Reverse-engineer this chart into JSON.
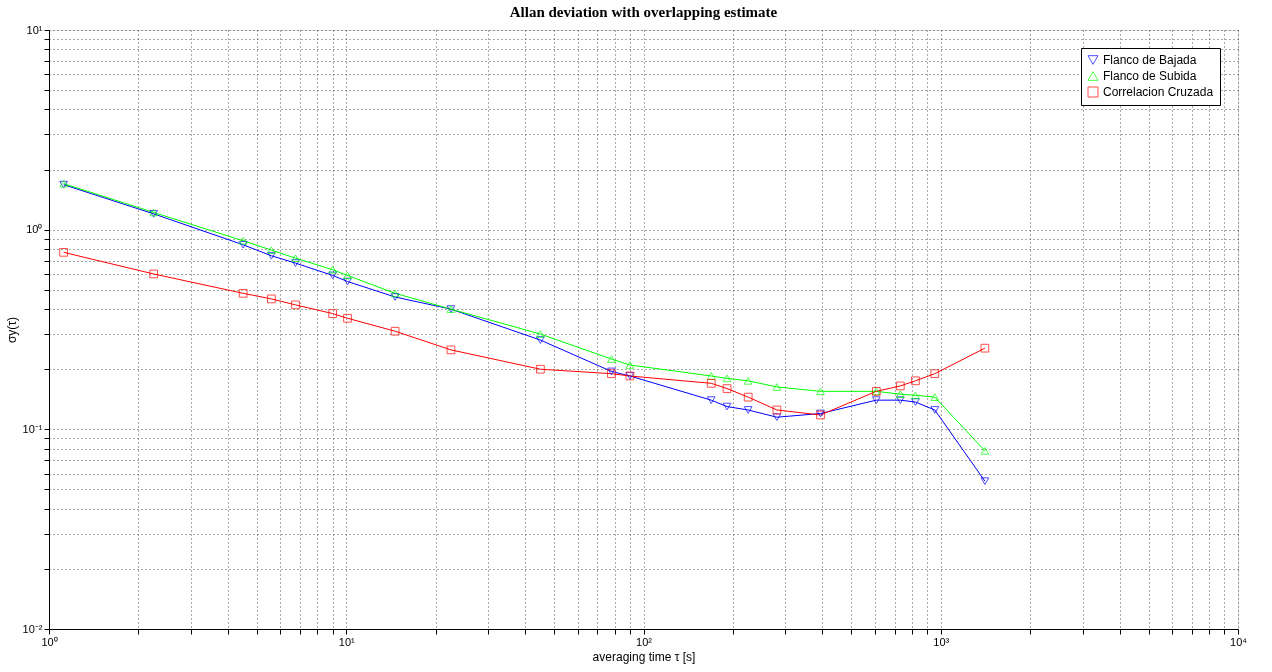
{
  "chart_data": {
    "type": "line",
    "title": "Allan deviation with overlapping estimate",
    "xlabel": "averaging time τ [s]",
    "ylabel": "σy(τ)",
    "x": [
      1.12,
      2.25,
      4.5,
      5.6,
      6.75,
      9,
      10.1,
      14.6,
      22.5,
      45,
      78,
      90,
      169,
      191,
      225,
      281,
      394,
      607,
      731,
      822,
      955,
      1408
    ],
    "series": [
      {
        "name": "Flanco de Bajada",
        "color": "#0000ff",
        "marker": "triangle-down",
        "values": [
          1.68,
          1.2,
          0.84,
          0.74,
          0.68,
          0.59,
          0.55,
          0.46,
          0.4,
          0.28,
          0.195,
          0.185,
          0.14,
          0.13,
          0.125,
          0.115,
          0.12,
          0.14,
          0.14,
          0.137,
          0.125,
          0.055
        ]
      },
      {
        "name": "Flanco de Subida",
        "color": "#00ff00",
        "marker": "triangle",
        "values": [
          1.7,
          1.22,
          0.88,
          0.79,
          0.72,
          0.63,
          0.59,
          0.48,
          0.4,
          0.3,
          0.225,
          0.21,
          0.185,
          0.18,
          0.175,
          0.163,
          0.155,
          0.155,
          0.15,
          0.148,
          0.145,
          0.078
        ]
      },
      {
        "name": "Correlacion Cruzada",
        "color": "#ff0000",
        "marker": "square",
        "values": [
          0.77,
          0.6,
          0.48,
          0.45,
          0.42,
          0.38,
          0.36,
          0.31,
          0.25,
          0.2,
          0.19,
          0.185,
          0.17,
          0.16,
          0.145,
          0.125,
          0.118,
          0.155,
          0.165,
          0.175,
          0.19,
          0.255
        ]
      }
    ],
    "log": "xy",
    "xlim": [
      1,
      10000
    ],
    "ylim": [
      0.01,
      10
    ],
    "xticks": [
      {
        "value": 1,
        "label": "10⁰"
      },
      {
        "value": 2,
        "label": null
      },
      {
        "value": 3,
        "label": null
      },
      {
        "value": 4,
        "label": null
      },
      {
        "value": 5,
        "label": null
      },
      {
        "value": 6,
        "label": null
      },
      {
        "value": 7,
        "label": null
      },
      {
        "value": 8,
        "label": null
      },
      {
        "value": 9,
        "label": null
      },
      {
        "value": 10,
        "label": "10¹"
      },
      {
        "value": 20,
        "label": null
      },
      {
        "value": 30,
        "label": null
      },
      {
        "value": 40,
        "label": null
      },
      {
        "value": 50,
        "label": null
      },
      {
        "value": 60,
        "label": null
      },
      {
        "value": 70,
        "label": null
      },
      {
        "value": 80,
        "label": null
      },
      {
        "value": 90,
        "label": null
      },
      {
        "value": 100,
        "label": "10²"
      },
      {
        "value": 200,
        "label": null
      },
      {
        "value": 300,
        "label": null
      },
      {
        "value": 400,
        "label": null
      },
      {
        "value": 500,
        "label": null
      },
      {
        "value": 600,
        "label": null
      },
      {
        "value": 700,
        "label": null
      },
      {
        "value": 800,
        "label": null
      },
      {
        "value": 900,
        "label": null
      },
      {
        "value": 1000,
        "label": "10³"
      },
      {
        "value": 2000,
        "label": null
      },
      {
        "value": 3000,
        "label": null
      },
      {
        "value": 4000,
        "label": null
      },
      {
        "value": 5000,
        "label": null
      },
      {
        "value": 6000,
        "label": null
      },
      {
        "value": 7000,
        "label": null
      },
      {
        "value": 8000,
        "label": null
      },
      {
        "value": 9000,
        "label": null
      },
      {
        "value": 10000,
        "label": "10⁴"
      }
    ],
    "yticks": [
      {
        "value": 0.01,
        "label": "10⁻²"
      },
      {
        "value": 0.02,
        "label": null
      },
      {
        "value": 0.03,
        "label": null
      },
      {
        "value": 0.04,
        "label": null
      },
      {
        "value": 0.05,
        "label": null
      },
      {
        "value": 0.06,
        "label": null
      },
      {
        "value": 0.07,
        "label": null
      },
      {
        "value": 0.08,
        "label": null
      },
      {
        "value": 0.09,
        "label": null
      },
      {
        "value": 0.1,
        "label": "10⁻¹"
      },
      {
        "value": 0.2,
        "label": null
      },
      {
        "value": 0.3,
        "label": null
      },
      {
        "value": 0.4,
        "label": null
      },
      {
        "value": 0.5,
        "label": null
      },
      {
        "value": 0.6,
        "label": null
      },
      {
        "value": 0.7,
        "label": null
      },
      {
        "value": 0.8,
        "label": null
      },
      {
        "value": 0.9,
        "label": null
      },
      {
        "value": 1,
        "label": "10⁰"
      },
      {
        "value": 2,
        "label": null
      },
      {
        "value": 3,
        "label": null
      },
      {
        "value": 4,
        "label": null
      },
      {
        "value": 5,
        "label": null
      },
      {
        "value": 6,
        "label": null
      },
      {
        "value": 7,
        "label": null
      },
      {
        "value": 8,
        "label": null
      },
      {
        "value": 9,
        "label": null
      },
      {
        "value": 10,
        "label": "10¹"
      }
    ],
    "grid": true,
    "legend": "top right",
    "line_style": "solid"
  }
}
